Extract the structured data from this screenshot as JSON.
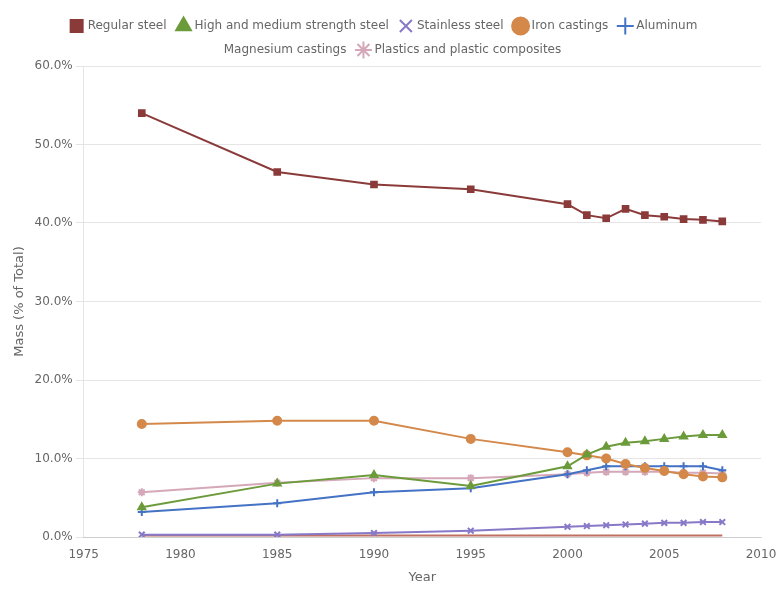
{
  "chart_data": {
    "type": "line",
    "xlabel": "Year",
    "ylabel": "Mass (% of Total)",
    "x": [
      1978,
      1985,
      1990,
      1995,
      2000,
      2001,
      2002,
      2003,
      2004,
      2005,
      2006,
      2007,
      2008
    ],
    "series": [
      {
        "name": "Regular steel",
        "color": "#8B3A3A",
        "marker": "square",
        "values": [
          0.54,
          0.465,
          0.449,
          0.443,
          0.424,
          0.41,
          0.406,
          0.418,
          0.41,
          0.408,
          0.405,
          0.404,
          0.402
        ]
      },
      {
        "name": "High and medium strength steel",
        "color": "#6B9B3A",
        "marker": "triangle",
        "values": [
          0.038,
          0.068,
          0.079,
          0.065,
          0.09,
          0.105,
          0.115,
          0.12,
          0.122,
          0.125,
          0.128,
          0.13,
          0.13
        ]
      },
      {
        "name": "Stainless steel",
        "color": "#8878C8",
        "marker": "x",
        "values": [
          0.003,
          0.003,
          0.005,
          0.008,
          0.013,
          0.014,
          0.015,
          0.016,
          0.017,
          0.018,
          0.018,
          0.019,
          0.019
        ]
      },
      {
        "name": "Iron castings",
        "color": "#D4884A",
        "marker": "circle",
        "values": [
          0.144,
          0.148,
          0.148,
          0.125,
          0.108,
          0.104,
          0.1,
          0.093,
          0.088,
          0.084,
          0.08,
          0.077,
          0.076
        ]
      },
      {
        "name": "Aluminum",
        "color": "#4472C4",
        "marker": "plus",
        "values": [
          0.032,
          0.043,
          0.057,
          0.062,
          0.08,
          0.085,
          0.09,
          0.09,
          0.09,
          0.09,
          0.09,
          0.09,
          0.085
        ]
      },
      {
        "name": "Magnesium castings",
        "color": "#C07060",
        "marker": "none",
        "values": [
          0.002,
          0.002,
          0.002,
          0.002,
          0.002,
          0.002,
          0.002,
          0.002,
          0.002,
          0.002,
          0.002,
          0.002,
          0.002
        ]
      },
      {
        "name": "Plastics and plastic composites",
        "color": "#D4A8B8",
        "marker": "star",
        "values": [
          0.057,
          0.069,
          0.075,
          0.075,
          0.08,
          0.082,
          0.083,
          0.083,
          0.083,
          0.083,
          0.082,
          0.082,
          0.081
        ]
      }
    ],
    "xlim": [
      1975,
      2010
    ],
    "xticks": [
      1975,
      1980,
      1985,
      1990,
      1995,
      2000,
      2005,
      2010
    ],
    "ylim": [
      0.0,
      0.6
    ],
    "yticks": [
      {
        "value": 0.0,
        "label": "0.0%"
      },
      {
        "value": 0.1,
        "label": "10.0%"
      },
      {
        "value": 0.2,
        "label": "20.0%"
      },
      {
        "value": 0.3,
        "label": "30.0%"
      },
      {
        "value": 0.4,
        "label": "40.0%"
      },
      {
        "value": 0.5,
        "label": "50.0%"
      },
      {
        "value": 0.6,
        "label": "60.0%"
      }
    ],
    "grid": true,
    "legend": "top"
  }
}
